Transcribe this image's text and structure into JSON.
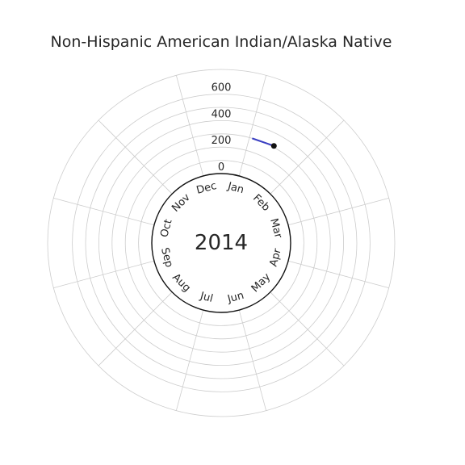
{
  "chart_data": {
    "type": "line",
    "projection": "polar",
    "title": "Non-Hispanic American Indian/Alaska Native",
    "center_label": "2014",
    "months": [
      "Jan",
      "Feb",
      "Mar",
      "Apr",
      "May",
      "Jun",
      "Jul",
      "Aug",
      "Sep",
      "Oct",
      "Nov",
      "Dec"
    ],
    "r_ticks": [
      "0",
      "200",
      "400",
      "600"
    ],
    "rlim": [
      0,
      700
    ],
    "grid": true,
    "series": [
      {
        "points": [
          {
            "month_pos": 0.55,
            "value": 300
          },
          {
            "month_pos": 0.95,
            "value": 310
          }
        ],
        "color": "#3a3fc2"
      }
    ],
    "marker": {
      "month_pos": 0.95,
      "value": 310
    }
  }
}
